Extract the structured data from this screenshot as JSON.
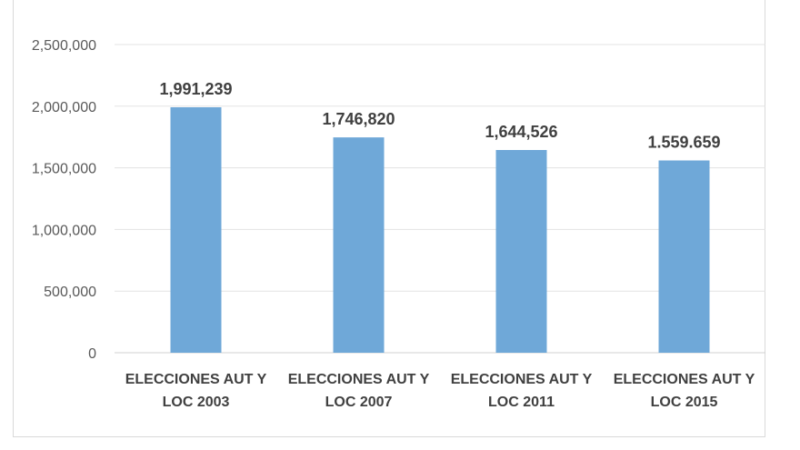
{
  "chart_data": {
    "type": "bar",
    "title": "",
    "xlabel": "",
    "ylabel": "",
    "categories": [
      [
        "ELECCIONES AUT Y",
        "LOC 2003"
      ],
      [
        "ELECCIONES AUT Y",
        "LOC 2007"
      ],
      [
        "ELECCIONES AUT Y",
        "LOC 2011"
      ],
      [
        "ELECCIONES AUT Y",
        "LOC 2015"
      ]
    ],
    "values": [
      1991239,
      1746820,
      1644526,
      1559659
    ],
    "data_labels": [
      "1,991,239",
      "1,746,820",
      "1,644,526",
      "1.559.659"
    ],
    "ylim": [
      0,
      2500000
    ],
    "yticks": [
      0,
      500000,
      1000000,
      1500000,
      2000000,
      2500000
    ],
    "ytick_labels": [
      "0",
      "500,000",
      "1,000,000",
      "1,500,000",
      "2,000,000",
      "2,500,000"
    ],
    "grid": true,
    "legend": "none",
    "bar_color": "#6fa8d8"
  }
}
